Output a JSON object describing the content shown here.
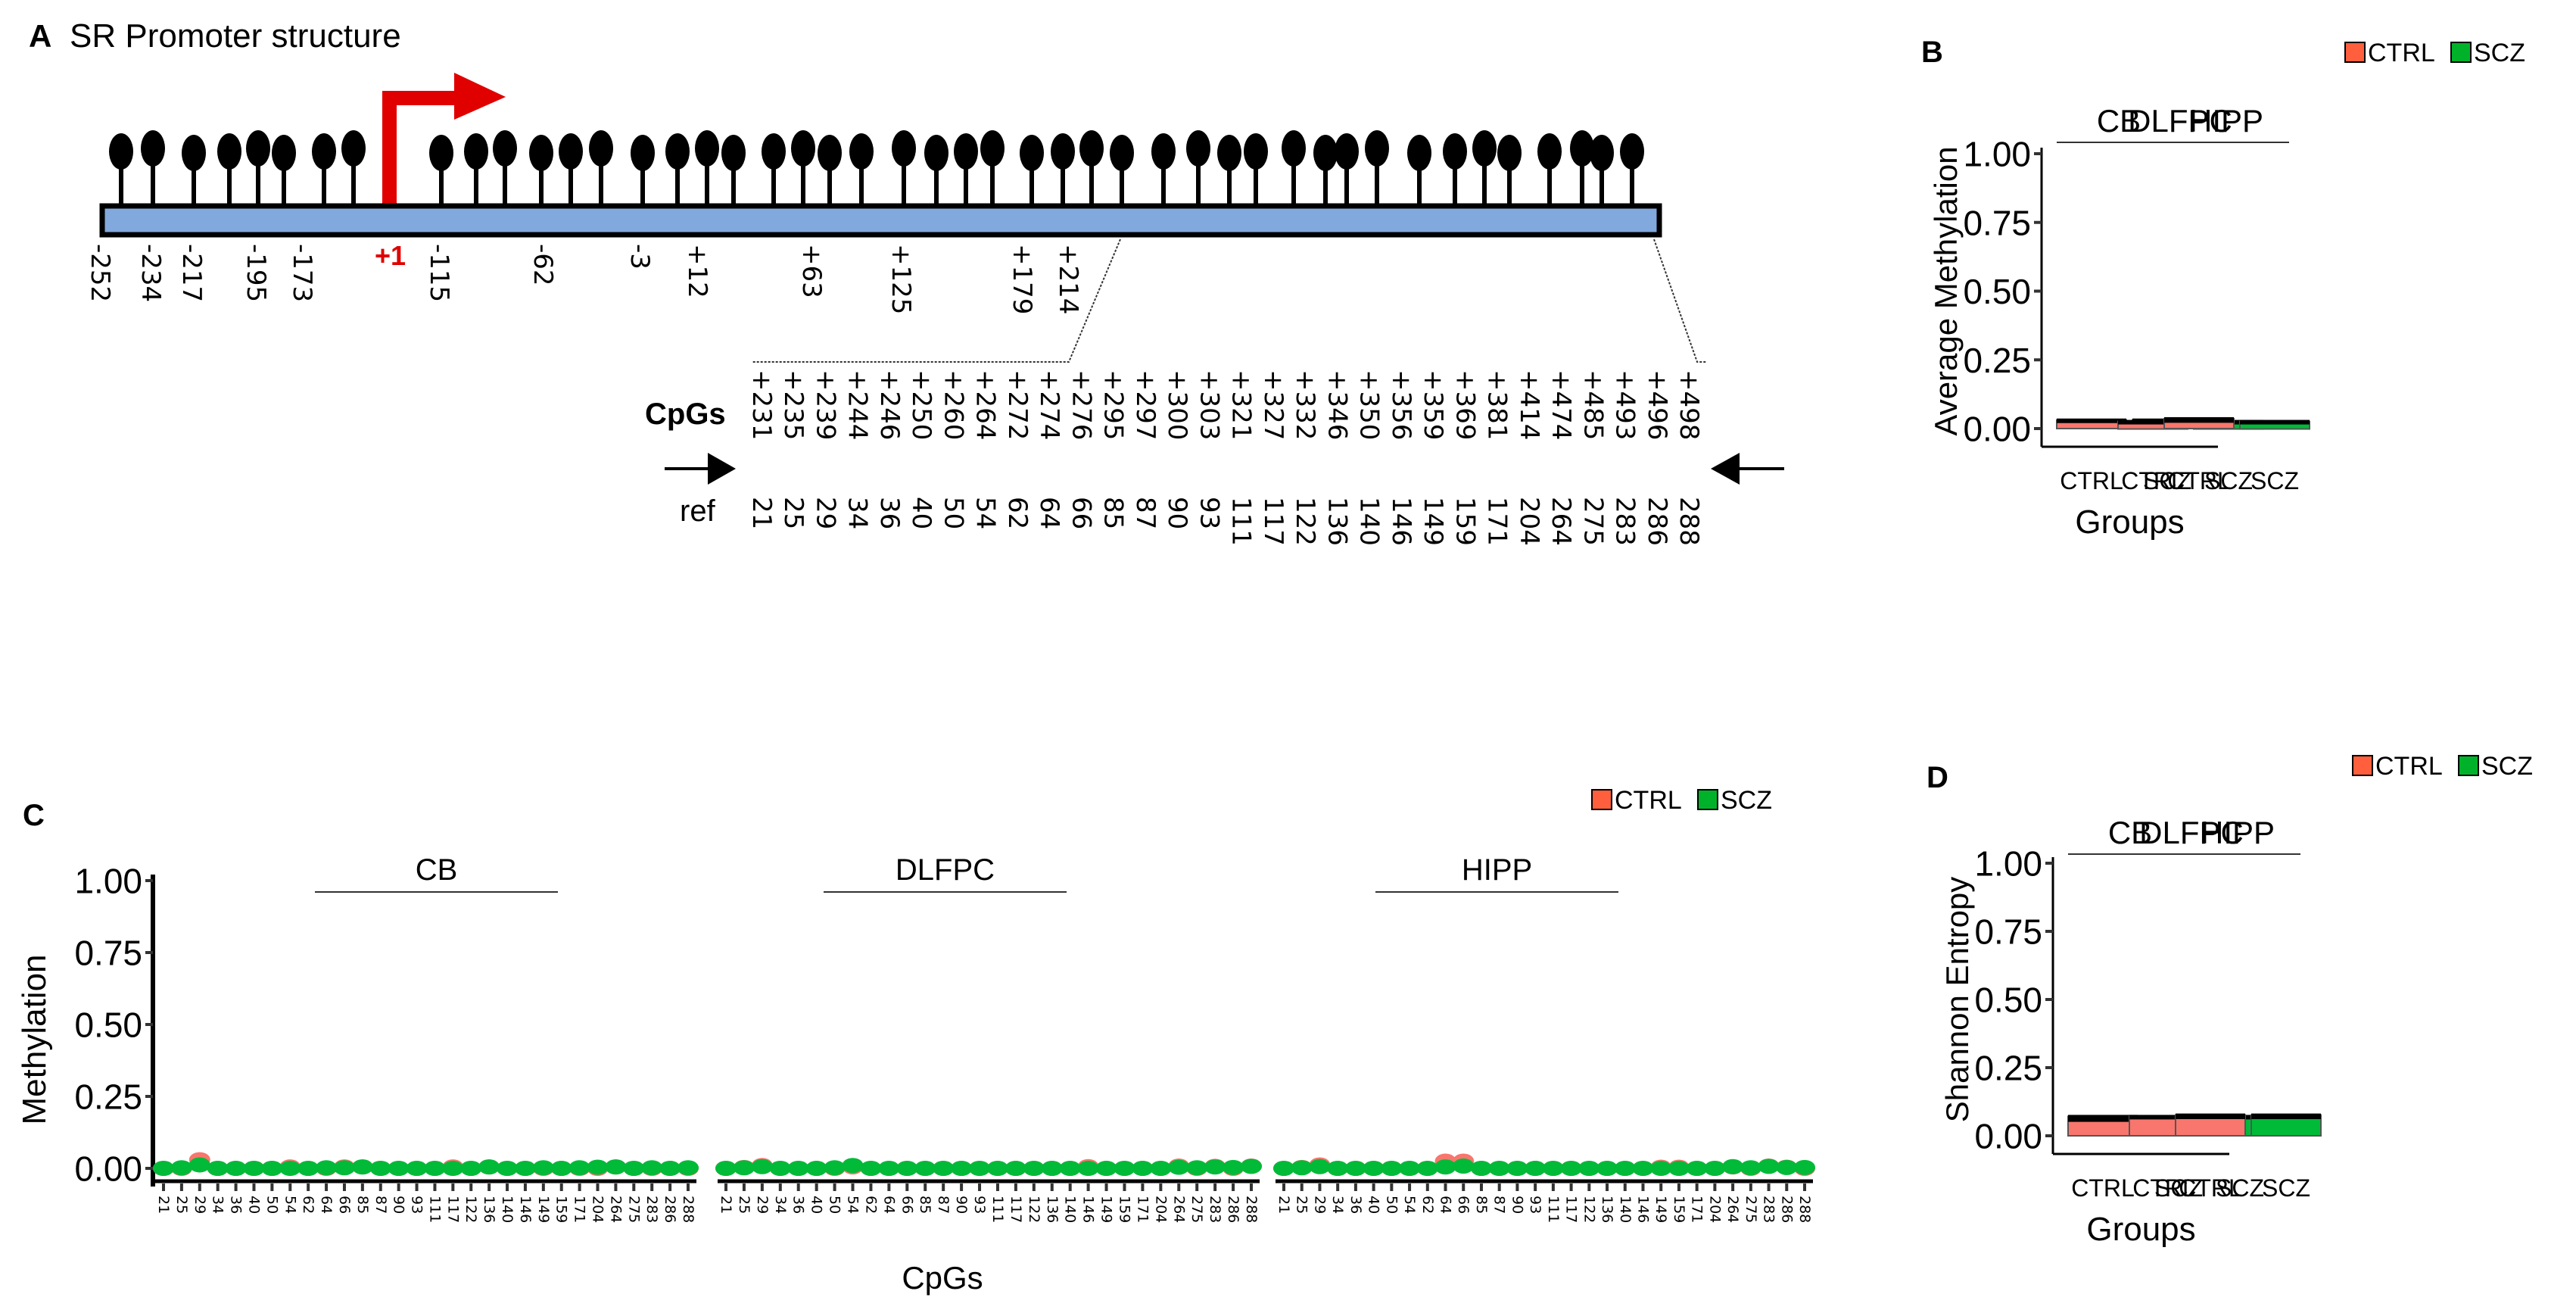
{
  "colors": {
    "ctrl": "#FF5F3D",
    "ctrl_fill": "#F8766D",
    "scz": "#00B22A",
    "scz_fill": "#00BA38",
    "promoter_bar": "#82A9DD",
    "tss": "#E00000",
    "axis": "#000000"
  },
  "legend": [
    {
      "label": "CTRL",
      "color": "#FF5F3D"
    },
    {
      "label": "SCZ",
      "color": "#00B22A"
    }
  ],
  "panel_a": {
    "letter": "A",
    "title": "SR Promoter structure",
    "tss_label": "+1",
    "positions_below_bar": [
      "-252",
      "-234",
      "-217",
      "-195",
      "-173",
      "-115",
      "-62",
      "-3",
      "+12",
      "+63",
      "+125",
      "+179",
      "+214"
    ],
    "cpgs_label": "CpGs",
    "ref_label": "ref",
    "cpg_positions": [
      "+231",
      "+235",
      "+239",
      "+244",
      "+246",
      "+250",
      "+260",
      "+264",
      "+272",
      "+274",
      "+276",
      "+295",
      "+297",
      "+300",
      "+303",
      "+321",
      "+327",
      "+332",
      "+346",
      "+350",
      "+356",
      "+359",
      "+369",
      "+381",
      "+414",
      "+474",
      "+485",
      "+493",
      "+496",
      "+498"
    ],
    "ref_positions": [
      "21",
      "25",
      "29",
      "34",
      "36",
      "40",
      "50",
      "54",
      "62",
      "64",
      "66",
      "85",
      "87",
      "90",
      "93",
      "111",
      "117",
      "122",
      "136",
      "140",
      "146",
      "149",
      "159",
      "171",
      "204",
      "264",
      "275",
      "283",
      "286",
      "288"
    ]
  },
  "panel_b": {
    "letter": "B",
    "ylabel": "Average Methylation",
    "xlabel": "Groups",
    "yticks": [
      "1.00",
      "0.75",
      "0.50",
      "0.25",
      "0.00"
    ],
    "facets": [
      "CB",
      "DLFPC",
      "HIPP"
    ],
    "group_labels": [
      "CTRL",
      "SCZ"
    ]
  },
  "panel_c": {
    "letter": "C",
    "ylabel": "Methylation",
    "xlabel": "CpGs",
    "yticks": [
      "1.00",
      "0.75",
      "0.50",
      "0.25",
      "0.00"
    ],
    "facets": [
      "CB",
      "DLFPC",
      "HIPP"
    ]
  },
  "panel_d": {
    "letter": "D",
    "ylabel": "Shannon Entropy",
    "xlabel": "Groups",
    "yticks": [
      "1.00",
      "0.75",
      "0.50",
      "0.25",
      "0.00"
    ],
    "facets": [
      "CB",
      "DLFPC",
      "HIPP"
    ],
    "group_labels": [
      "CTRL",
      "SCZ"
    ]
  },
  "chart_data": [
    {
      "panel": "B",
      "type": "box",
      "title": "",
      "xlabel": "Groups",
      "ylabel": "Average Methylation",
      "ylim": [
        0,
        1
      ],
      "yticks": [
        0,
        0.25,
        0.5,
        0.75,
        1.0
      ],
      "facets": [
        "CB",
        "DLFPC",
        "HIPP"
      ],
      "categories": [
        "CTRL",
        "SCZ"
      ],
      "series": [
        {
          "name": "CTRL",
          "facet_values": {
            "CB": {
              "median": 0.01,
              "q1": 0.0,
              "q3": 0.02
            },
            "DLFPC": {
              "median": 0.01,
              "q1": 0.0,
              "q3": 0.015
            },
            "HIPP": {
              "median": 0.01,
              "q1": 0.0,
              "q3": 0.025
            }
          }
        },
        {
          "name": "SCZ",
          "facet_values": {
            "CB": {
              "median": 0.01,
              "q1": 0.0,
              "q3": 0.02
            },
            "DLFPC": {
              "median": 0.01,
              "q1": 0.0,
              "q3": 0.015
            },
            "HIPP": {
              "median": 0.01,
              "q1": 0.0,
              "q3": 0.015
            }
          }
        }
      ],
      "legend_position": "top-right"
    },
    {
      "panel": "C",
      "type": "scatter",
      "xlabel": "CpGs",
      "ylabel": "Methylation",
      "ylim": [
        0,
        1
      ],
      "yticks": [
        0,
        0.25,
        0.5,
        0.75,
        1.0
      ],
      "facets": [
        "CB",
        "DLFPC",
        "HIPP"
      ],
      "categories": [
        "21",
        "25",
        "29",
        "34",
        "36",
        "40",
        "50",
        "54",
        "62",
        "64",
        "66",
        "85",
        "87",
        "90",
        "93",
        "111",
        "117",
        "122",
        "136",
        "140",
        "146",
        "149",
        "159",
        "171",
        "204",
        "264",
        "275",
        "283",
        "286",
        "288"
      ],
      "series": [
        {
          "name": "CTRL",
          "facet": "CB",
          "values": [
            0,
            0,
            0.03,
            0,
            0,
            0,
            0,
            0.005,
            0,
            0,
            0.005,
            0.005,
            0,
            0,
            0,
            0,
            0.005,
            0,
            0.005,
            0,
            0,
            0,
            0,
            0,
            0,
            0.005,
            0,
            0,
            0,
            0
          ]
        },
        {
          "name": "SCZ",
          "facet": "CB",
          "values": [
            0,
            0.002,
            0.012,
            0,
            0,
            0,
            0,
            0,
            0,
            0.002,
            0.002,
            0.005,
            0,
            0,
            0,
            0,
            0,
            0,
            0.005,
            0,
            0,
            0.002,
            0,
            0.002,
            0.004,
            0.005,
            0,
            0.002,
            0,
            0.002
          ]
        },
        {
          "name": "CTRL",
          "facet": "DLFPC",
          "values": [
            0,
            0.003,
            0.01,
            0,
            0,
            0,
            0,
            0.005,
            0,
            0,
            0,
            0,
            0,
            0,
            0,
            0,
            0,
            0,
            0,
            0,
            0.006,
            0,
            0,
            0,
            0,
            0.008,
            0,
            0.007,
            0,
            0.008
          ]
        },
        {
          "name": "SCZ",
          "facet": "DLFPC",
          "values": [
            0,
            0.002,
            0.006,
            0,
            0,
            0,
            0.002,
            0.01,
            0,
            0,
            0,
            0,
            0,
            0,
            0,
            0,
            0,
            0,
            0,
            0,
            0,
            0,
            0,
            0,
            0,
            0.004,
            0.002,
            0.005,
            0.003,
            0.007
          ]
        },
        {
          "name": "CTRL",
          "facet": "HIPP",
          "values": [
            0,
            0.003,
            0.012,
            0,
            0,
            0,
            0,
            0,
            0,
            0.025,
            0.025,
            0,
            0,
            0,
            0,
            0,
            0,
            0,
            0,
            0,
            0,
            0.004,
            0.004,
            0,
            0,
            0.005,
            0,
            0.008,
            0.004,
            0
          ]
        },
        {
          "name": "SCZ",
          "facet": "HIPP",
          "values": [
            0,
            0.002,
            0.006,
            0,
            0,
            0,
            0,
            0,
            0,
            0.005,
            0.008,
            0,
            0,
            0,
            0,
            0,
            0,
            0,
            0,
            0,
            0,
            0,
            0,
            0,
            0,
            0.006,
            0.002,
            0.007,
            0.003,
            0.003
          ]
        }
      ],
      "legend_position": "top-right"
    },
    {
      "panel": "D",
      "type": "box",
      "xlabel": "Groups",
      "ylabel": "Shannon Entropy",
      "ylim": [
        0,
        1
      ],
      "yticks": [
        0,
        0.25,
        0.5,
        0.75,
        1.0
      ],
      "facets": [
        "CB",
        "DLFPC",
        "HIPP"
      ],
      "categories": [
        "CTRL",
        "SCZ"
      ],
      "series": [
        {
          "name": "CTRL",
          "facet_values": {
            "CB": {
              "median": 0.04,
              "q1": 0.0,
              "q3": 0.06
            },
            "DLFPC": {
              "median": 0.05,
              "q1": 0.0,
              "q3": 0.06
            },
            "HIPP": {
              "median": 0.05,
              "q1": 0.0,
              "q3": 0.065
            }
          }
        },
        {
          "name": "SCZ",
          "facet_values": {
            "CB": {
              "median": 0.035,
              "q1": 0.0,
              "q3": 0.055
            },
            "DLFPC": {
              "median": 0.05,
              "q1": 0.0,
              "q3": 0.06
            },
            "HIPP": {
              "median": 0.05,
              "q1": 0.0,
              "q3": 0.065
            }
          }
        }
      ],
      "legend_position": "top-right"
    }
  ]
}
